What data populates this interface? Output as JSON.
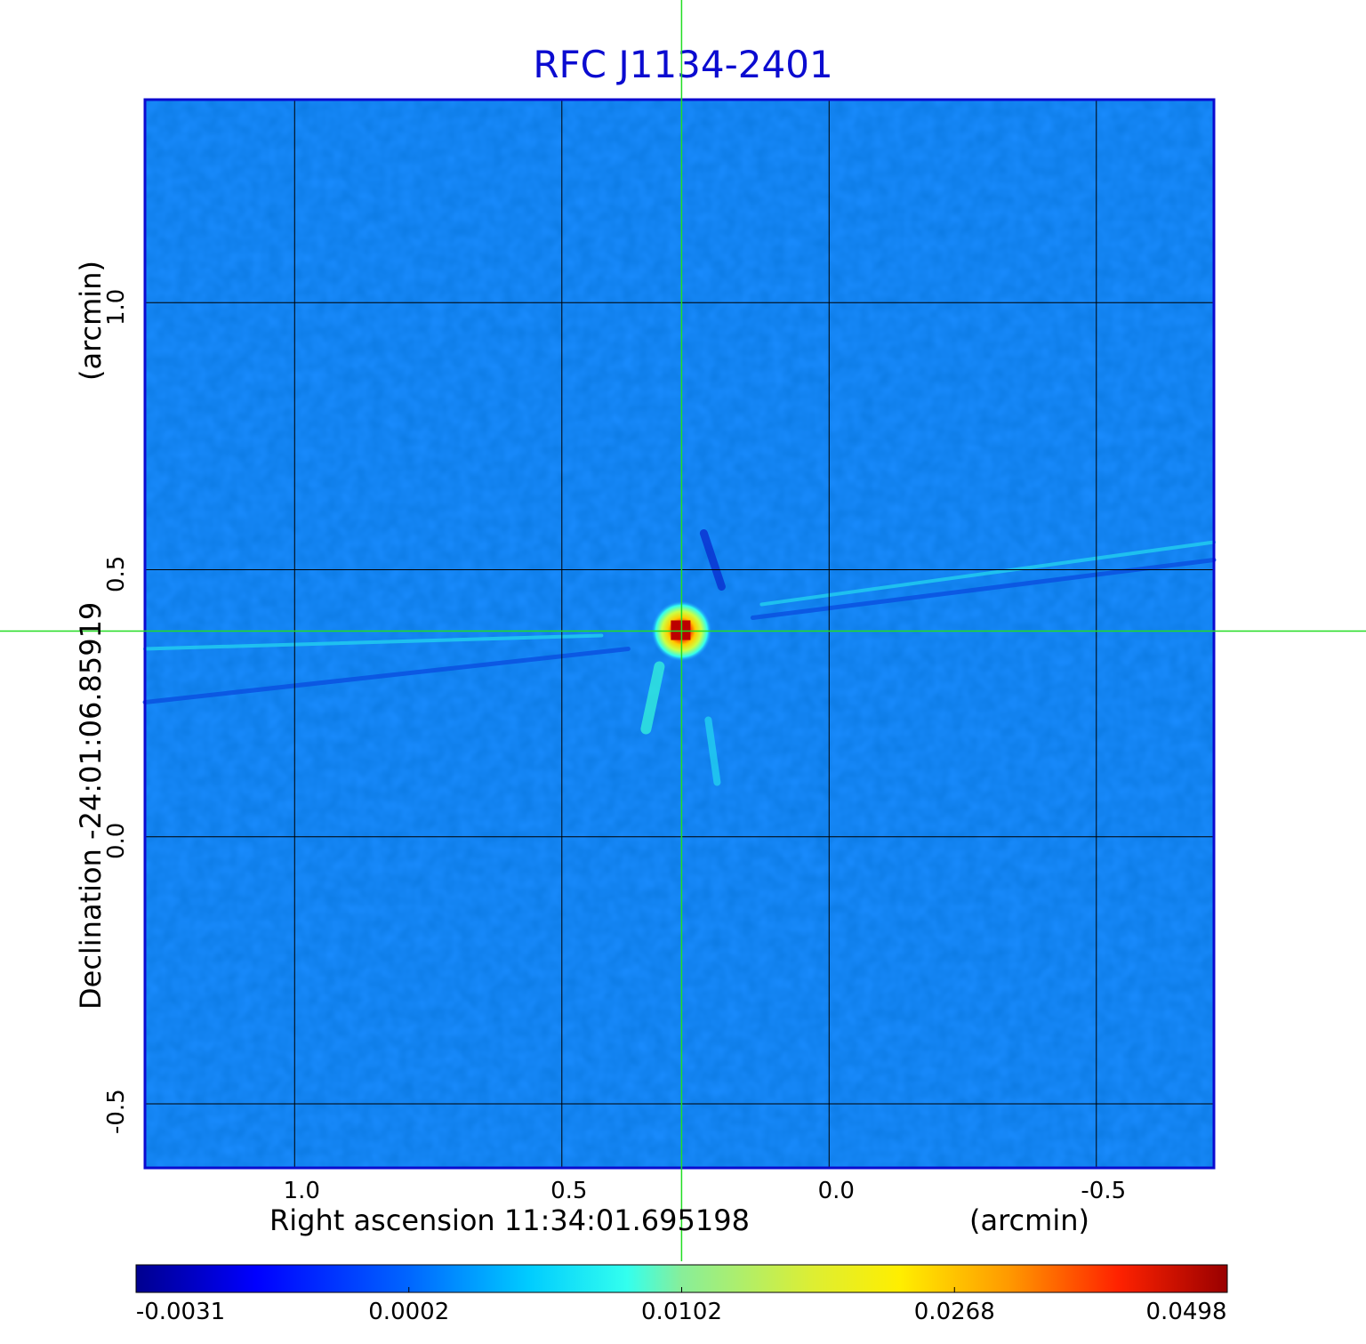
{
  "chart_data": {
    "type": "heatmap",
    "title": "RFC J1134-2401",
    "xlabel": "Right ascension  11:34:01.695198",
    "xunit": "(arcmin)",
    "ylabel": "Declination  -24:01:06.85919",
    "yunit": "(arcmin)",
    "x_ticks": [
      "1.0",
      "0.5",
      "0.0",
      "-0.5"
    ],
    "x_tick_values": [
      1.0,
      0.5,
      0.0,
      -0.5
    ],
    "y_ticks": [
      "1.0",
      "0.5",
      "0.0",
      "-0.5"
    ],
    "y_tick_values": [
      1.0,
      0.5,
      0.0,
      -0.5
    ],
    "xlim": [
      1.28,
      -0.72
    ],
    "ylim": [
      -0.62,
      1.38
    ],
    "grid": true,
    "crosshair": {
      "x": 0.276,
      "y": 0.385
    },
    "source_peak": {
      "x": 0.276,
      "y": 0.385,
      "value": 0.0498
    },
    "colorbar": {
      "colormap": "jet",
      "tick_labels": [
        "-0.0031",
        "0.0002",
        "0.0102",
        "0.0268",
        "0.0498"
      ],
      "tick_values": [
        -0.0031,
        0.0002,
        0.0102,
        0.0268,
        0.0498
      ]
    },
    "colors": {
      "title": "#0b0bd0",
      "frame": "#0b0bd0",
      "crosshair": "#22dd22",
      "grid": "#000000",
      "background_level": "#1a8cff"
    }
  }
}
